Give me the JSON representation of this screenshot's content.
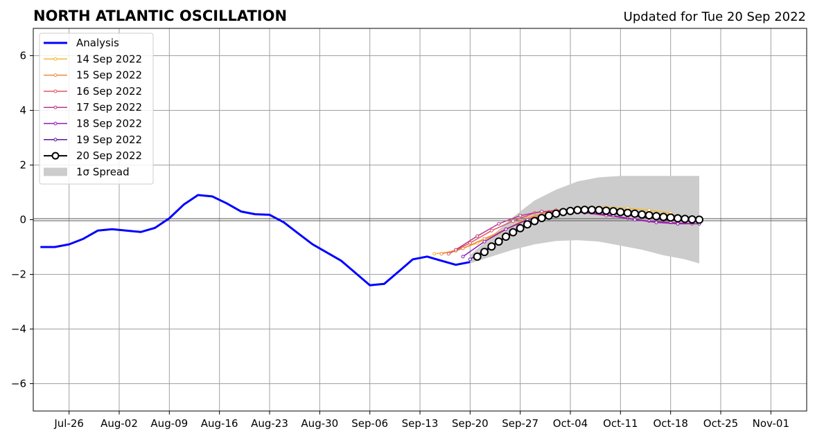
{
  "header": {
    "title": "NORTH ATLANTIC OSCILLATION",
    "updated": "Updated for Tue 20 Sep 2022"
  },
  "chart_data": {
    "type": "line",
    "title": "NORTH ATLANTIC OSCILLATION",
    "xlabel": "",
    "ylabel": "",
    "ylim": [
      -7,
      7
    ],
    "xlim": [
      "2022-07-21",
      "2022-11-06"
    ],
    "grid": true,
    "legend_position": "top-left",
    "x_tick_labels": [
      "Jul-26",
      "Aug-02",
      "Aug-09",
      "Aug-16",
      "Aug-23",
      "Aug-30",
      "Sep-06",
      "Sep-13",
      "Sep-20",
      "Sep-27",
      "Oct-04",
      "Oct-11",
      "Oct-18",
      "Oct-25",
      "Nov-01"
    ],
    "y_tick_labels": [
      "−6",
      "−4",
      "−2",
      "0",
      "2",
      "4",
      "6"
    ],
    "y_ticks": [
      -6,
      -4,
      -2,
      0,
      2,
      4,
      6
    ],
    "colors": {
      "analysis": "#0000ff",
      "spread": "#cccccc",
      "zero_line": "#555555",
      "grid": "#a0a0a0"
    },
    "analysis": {
      "name": "Analysis",
      "x": [
        "2022-07-22",
        "2022-07-24",
        "2022-07-26",
        "2022-07-28",
        "2022-07-30",
        "2022-08-01",
        "2022-08-03",
        "2022-08-05",
        "2022-08-07",
        "2022-08-09",
        "2022-08-11",
        "2022-08-13",
        "2022-08-15",
        "2022-08-17",
        "2022-08-19",
        "2022-08-21",
        "2022-08-23",
        "2022-08-25",
        "2022-08-27",
        "2022-08-29",
        "2022-08-31",
        "2022-09-02",
        "2022-09-04",
        "2022-09-06",
        "2022-09-08",
        "2022-09-10",
        "2022-09-12",
        "2022-09-14",
        "2022-09-16",
        "2022-09-18",
        "2022-09-20"
      ],
      "y": [
        -1.0,
        -1.0,
        -0.9,
        -0.7,
        -0.4,
        -0.35,
        -0.4,
        -0.45,
        -0.3,
        0.05,
        0.55,
        0.9,
        0.85,
        0.6,
        0.3,
        0.2,
        0.18,
        -0.1,
        -0.5,
        -0.9,
        -1.2,
        -1.5,
        -1.95,
        -2.4,
        -2.35,
        -1.9,
        -1.45,
        -1.35,
        -1.5,
        -1.65,
        -1.55
      ]
    },
    "forecasts": [
      {
        "name": "14 Sep 2022",
        "color": "#f5b731",
        "x": [
          "2022-09-15",
          "2022-09-18",
          "2022-09-21",
          "2022-09-24",
          "2022-09-27",
          "2022-09-30",
          "2022-10-03",
          "2022-10-06",
          "2022-10-09",
          "2022-10-12",
          "2022-10-15",
          "2022-10-18"
        ],
        "y": [
          -1.25,
          -1.15,
          -0.85,
          -0.5,
          -0.1,
          0.2,
          0.35,
          0.45,
          0.45,
          0.42,
          0.35,
          0.25
        ]
      },
      {
        "name": "15 Sep 2022",
        "color": "#ef8a3b",
        "x": [
          "2022-09-16",
          "2022-09-19",
          "2022-09-22",
          "2022-09-25",
          "2022-09-28",
          "2022-10-01",
          "2022-10-04",
          "2022-10-07",
          "2022-10-10",
          "2022-10-13",
          "2022-10-16",
          "2022-10-19"
        ],
        "y": [
          -1.25,
          -1.05,
          -0.7,
          -0.35,
          0.05,
          0.3,
          0.4,
          0.42,
          0.38,
          0.3,
          0.22,
          0.15
        ]
      },
      {
        "name": "16 Sep 2022",
        "color": "#e05560",
        "x": [
          "2022-09-17",
          "2022-09-20",
          "2022-09-23",
          "2022-09-26",
          "2022-09-29",
          "2022-10-02",
          "2022-10-05",
          "2022-10-08",
          "2022-10-11",
          "2022-10-14",
          "2022-10-17",
          "2022-10-20"
        ],
        "y": [
          -1.25,
          -0.85,
          -0.4,
          -0.05,
          0.25,
          0.35,
          0.35,
          0.3,
          0.2,
          0.1,
          0.0,
          -0.05
        ]
      },
      {
        "name": "17 Sep 2022",
        "color": "#b7378e",
        "x": [
          "2022-09-18",
          "2022-09-21",
          "2022-09-24",
          "2022-09-27",
          "2022-09-30",
          "2022-10-03",
          "2022-10-06",
          "2022-10-09",
          "2022-10-12",
          "2022-10-15",
          "2022-10-18",
          "2022-10-21"
        ],
        "y": [
          -1.1,
          -0.6,
          -0.15,
          0.15,
          0.3,
          0.3,
          0.25,
          0.15,
          0.05,
          -0.05,
          -0.1,
          -0.15
        ]
      },
      {
        "name": "18 Sep 2022",
        "color": "#8f16b5",
        "x": [
          "2022-09-19",
          "2022-09-22",
          "2022-09-25",
          "2022-09-28",
          "2022-10-01",
          "2022-10-04",
          "2022-10-07",
          "2022-10-10",
          "2022-10-13",
          "2022-10-16",
          "2022-10-19",
          "2022-10-22"
        ],
        "y": [
          -1.35,
          -0.8,
          -0.35,
          0.0,
          0.2,
          0.3,
          0.25,
          0.15,
          0.0,
          -0.1,
          -0.15,
          -0.15
        ]
      },
      {
        "name": "19 Sep 2022",
        "color": "#5a12a0",
        "x": [
          "2022-09-20",
          "2022-09-23",
          "2022-09-26",
          "2022-09-29",
          "2022-10-02",
          "2022-10-05",
          "2022-10-08",
          "2022-10-11",
          "2022-10-14",
          "2022-10-17",
          "2022-10-20"
        ],
        "y": [
          -1.45,
          -0.95,
          -0.5,
          -0.05,
          0.2,
          0.3,
          0.3,
          0.2,
          0.1,
          0.0,
          -0.05
        ]
      }
    ],
    "latest_forecast": {
      "name": "20 Sep 2022",
      "color": "#000000",
      "x": [
        "2022-09-21",
        "2022-09-22",
        "2022-09-23",
        "2022-09-24",
        "2022-09-25",
        "2022-09-26",
        "2022-09-27",
        "2022-09-28",
        "2022-09-29",
        "2022-09-30",
        "2022-10-01",
        "2022-10-02",
        "2022-10-03",
        "2022-10-04",
        "2022-10-05",
        "2022-10-06",
        "2022-10-07",
        "2022-10-08",
        "2022-10-09",
        "2022-10-10",
        "2022-10-11",
        "2022-10-12",
        "2022-10-13",
        "2022-10-14",
        "2022-10-15",
        "2022-10-16",
        "2022-10-17",
        "2022-10-18",
        "2022-10-19",
        "2022-10-20",
        "2022-10-21",
        "2022-10-22"
      ],
      "y": [
        -1.35,
        -1.18,
        -0.98,
        -0.8,
        -0.62,
        -0.46,
        -0.31,
        -0.17,
        -0.05,
        0.06,
        0.15,
        0.22,
        0.28,
        0.32,
        0.35,
        0.36,
        0.36,
        0.35,
        0.33,
        0.31,
        0.28,
        0.25,
        0.22,
        0.19,
        0.16,
        0.13,
        0.1,
        0.08,
        0.05,
        0.03,
        0.01,
        0.0
      ]
    },
    "spread": {
      "name": "1σ Spread",
      "x": [
        "2022-09-20",
        "2022-09-23",
        "2022-09-26",
        "2022-09-29",
        "2022-10-02",
        "2022-10-05",
        "2022-10-08",
        "2022-10-11",
        "2022-10-14",
        "2022-10-17",
        "2022-10-20",
        "2022-10-22"
      ],
      "upper": [
        -1.3,
        -0.6,
        0.1,
        0.7,
        1.1,
        1.4,
        1.55,
        1.6,
        1.6,
        1.6,
        1.6,
        1.6
      ],
      "lower": [
        -1.6,
        -1.35,
        -1.1,
        -0.9,
        -0.78,
        -0.75,
        -0.8,
        -0.95,
        -1.1,
        -1.3,
        -1.45,
        -1.6
      ]
    },
    "legend": [
      "Analysis",
      "14 Sep 2022",
      "15 Sep 2022",
      "16 Sep 2022",
      "17 Sep 2022",
      "18 Sep 2022",
      "19 Sep 2022",
      "20 Sep 2022",
      "1σ Spread"
    ]
  }
}
